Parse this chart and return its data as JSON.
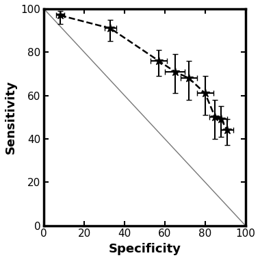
{
  "x": [
    8,
    33,
    57,
    65,
    72,
    80,
    85,
    88,
    91
  ],
  "y": [
    97,
    91,
    76,
    71,
    68,
    61,
    50,
    49,
    44
  ],
  "xerr": [
    2,
    3,
    4,
    5,
    4,
    4,
    3,
    3,
    3
  ],
  "yerr_lo": [
    4,
    6,
    7,
    10,
    10,
    10,
    10,
    8,
    7
  ],
  "yerr_hi": [
    2,
    4,
    5,
    8,
    8,
    8,
    8,
    6,
    5
  ],
  "ref_line_x": [
    0,
    100
  ],
  "ref_line_y": [
    100,
    0
  ],
  "xlabel": "Specificity",
  "ylabel": "Sensitivity",
  "xlim": [
    0,
    100
  ],
  "ylim": [
    0,
    100
  ],
  "xticks": [
    0,
    20,
    40,
    60,
    80,
    100
  ],
  "yticks": [
    0,
    20,
    40,
    60,
    80,
    100
  ],
  "marker": "*",
  "marker_size": 9,
  "line_style": "--",
  "line_color": "#000000",
  "ref_line_color": "#777777",
  "xlabel_fontsize": 13,
  "ylabel_fontsize": 13,
  "tick_fontsize": 11,
  "spine_linewidth": 2.5
}
